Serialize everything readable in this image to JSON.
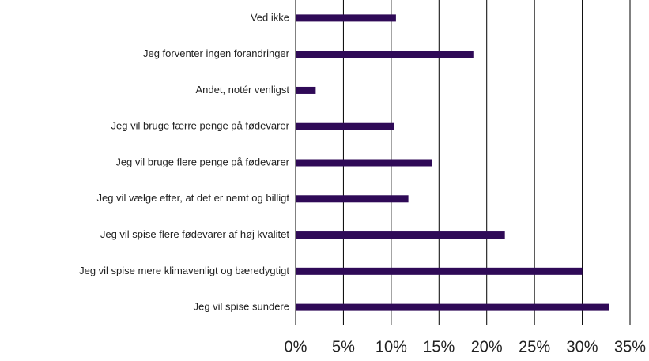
{
  "chart_data": {
    "type": "hbar",
    "categories": [
      "Ved ikke",
      "Jeg forventer ingen forandringer",
      "Andet, notér venligst",
      "Jeg vil bruge færre penge på fødevarer",
      "Jeg vil bruge flere penge på fødevarer",
      "Jeg vil vælge efter, at det er nemt og billigt",
      "Jeg vil spise flere fødevarer af høj kvalitet",
      "Jeg vil spise mere klimavenligt og bæredygtigt",
      "Jeg vil spise sundere"
    ],
    "values": [
      10.5,
      18.6,
      2.1,
      10.3,
      14.3,
      11.8,
      21.9,
      30,
      32.8
    ],
    "color": "#2f0a57",
    "xlim": [
      0,
      35
    ],
    "xticks": [
      {
        "value": 0,
        "label": "0%"
      },
      {
        "value": 5,
        "label": "5%"
      },
      {
        "value": 10,
        "label": "10%"
      },
      {
        "value": 15,
        "label": "15%"
      },
      {
        "value": 20,
        "label": "20%"
      },
      {
        "value": 25,
        "label": "25%"
      },
      {
        "value": 30,
        "label": "30%"
      },
      {
        "value": 35,
        "label": "35%"
      }
    ],
    "grid": true
  }
}
